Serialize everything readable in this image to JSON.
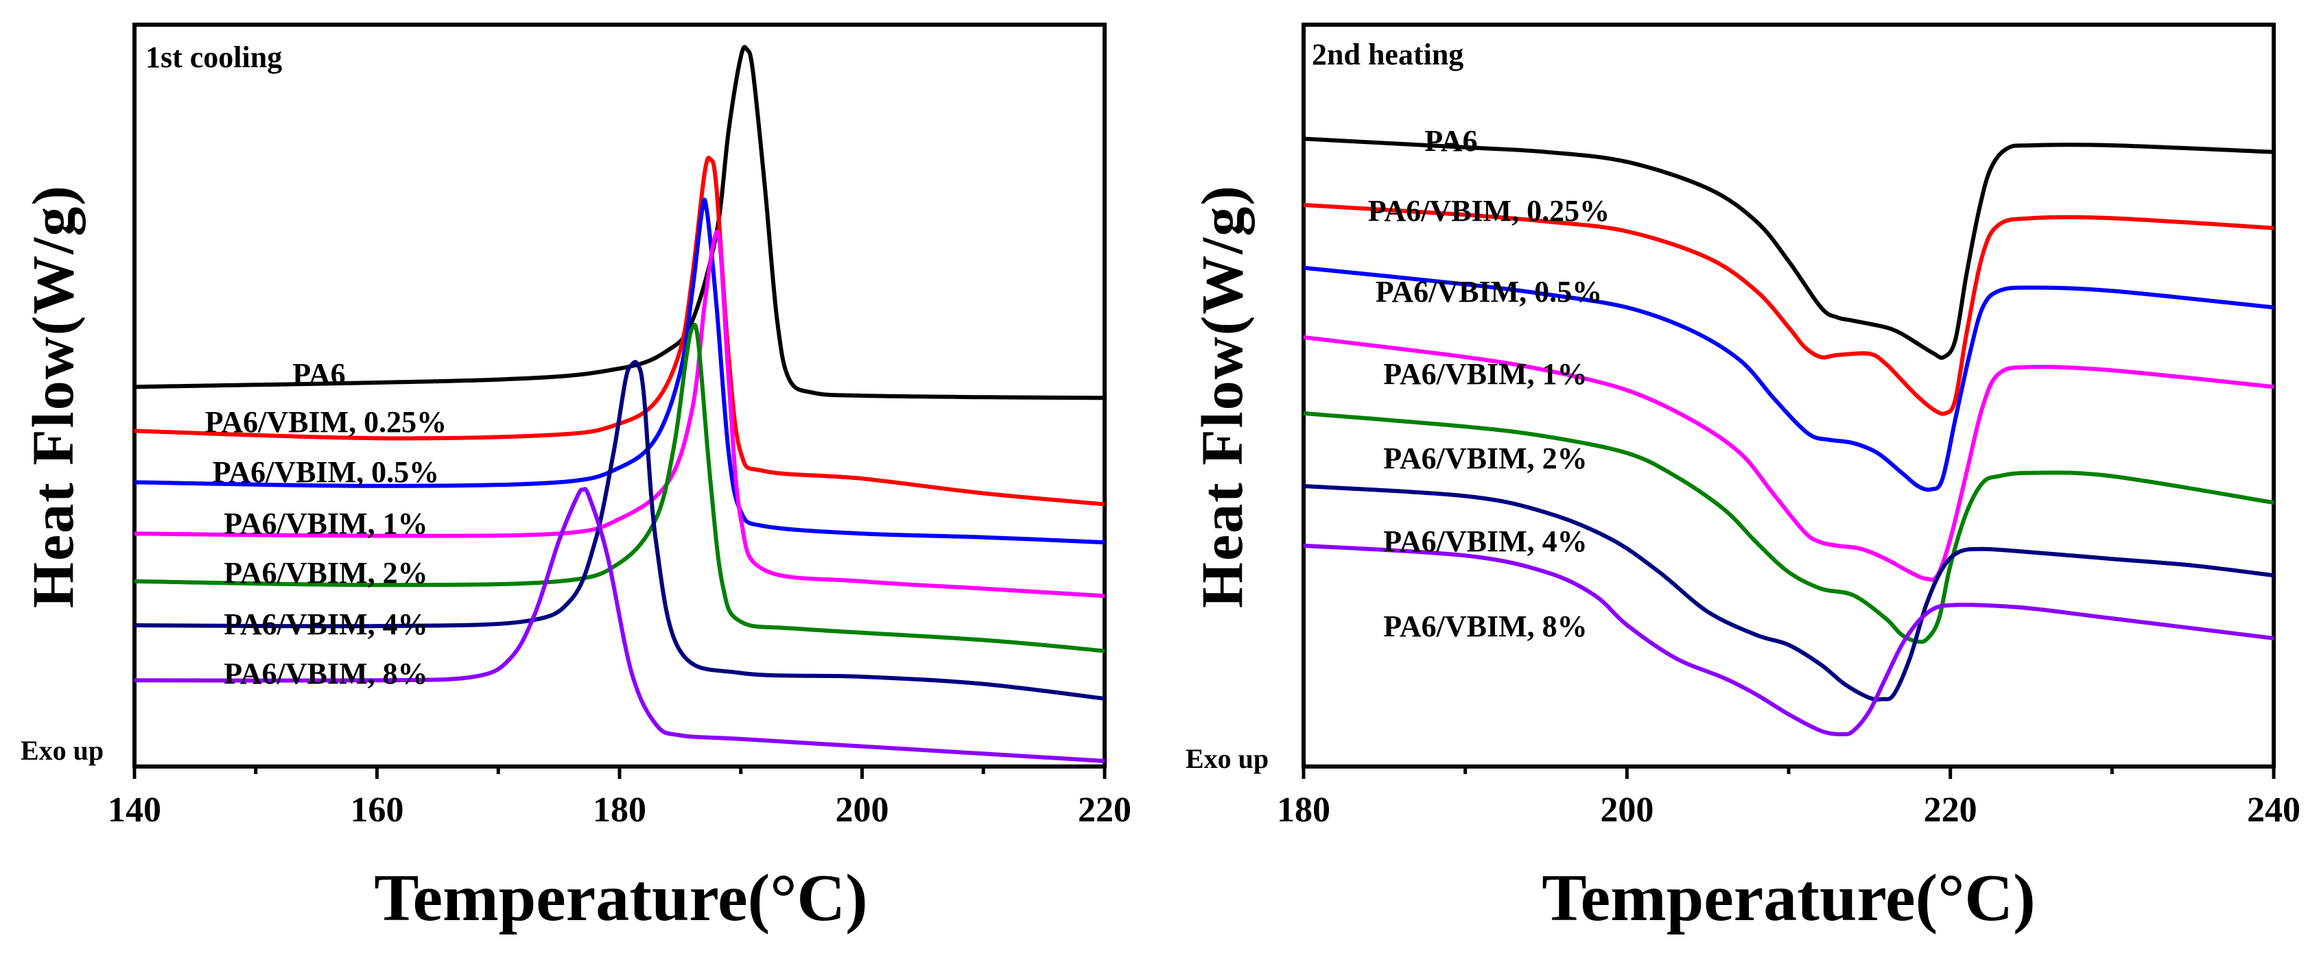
{
  "chart_data": [
    {
      "type": "line",
      "title": "1st cooling",
      "xlabel": "Temperature(°C)",
      "ylabel": "Heat Flow(W/g)",
      "xlim": [
        140,
        220
      ],
      "ylim": [
        0,
        100
      ],
      "xticks": [
        140,
        160,
        180,
        200,
        220
      ],
      "annotation": "Exo up",
      "series": [
        {
          "name": "PA6",
          "color": "#000000",
          "x": [
            140,
            170,
            180,
            184,
            186,
            188,
            189,
            190,
            190.5,
            191,
            192,
            193,
            194,
            196,
            200,
            210,
            220
          ],
          "y": [
            51,
            52,
            53.5,
            56,
            60,
            72,
            86,
            96,
            97,
            94,
            78,
            60,
            52,
            50.2,
            49.8,
            49.6,
            49.5
          ]
        },
        {
          "name": "PA6/VBIM, 0.25%",
          "color": "#ff0000",
          "x": [
            140,
            160,
            175,
            180,
            183,
            185,
            186,
            187,
            187.5,
            188,
            189,
            190,
            192,
            200,
            210,
            220
          ],
          "y": [
            45,
            44,
            44.5,
            46,
            49,
            56,
            66,
            80,
            82,
            78,
            55,
            42,
            39.5,
            38.5,
            36.5,
            35
          ]
        },
        {
          "name": "PA6/VBIM, 0.5%",
          "color": "#0000ff",
          "x": [
            140,
            160,
            175,
            180,
            183,
            185,
            186,
            186.8,
            187.2,
            188,
            189,
            190,
            192,
            200,
            210,
            220
          ],
          "y": [
            38,
            37.5,
            38,
            40,
            44,
            53,
            64,
            75,
            75,
            62,
            42,
            34,
            32,
            31,
            30.5,
            29.8
          ]
        },
        {
          "name": "PA6/VBIM, 1%",
          "color": "#ff00ff",
          "x": [
            140,
            160,
            175,
            180,
            184,
            186,
            187,
            187.8,
            188.3,
            189,
            190,
            192,
            200,
            210,
            220
          ],
          "y": [
            31,
            30.7,
            31,
            33,
            38,
            48,
            62,
            71,
            70,
            52,
            33,
            26,
            24.5,
            23.5,
            22.5
          ]
        },
        {
          "name": "PA6/VBIM, 2%",
          "color": "#008000",
          "x": [
            140,
            160,
            175,
            180,
            183,
            184.5,
            185.5,
            186,
            186.5,
            187.5,
            188.5,
            190,
            195,
            210,
            220
          ],
          "y": [
            24.5,
            24,
            24.5,
            27,
            33,
            43,
            55,
            59,
            57,
            38,
            24,
            19,
            18,
            16.5,
            15
          ]
        },
        {
          "name": "PA6/VBIM, 4%",
          "color": "#000080",
          "x": [
            140,
            160,
            172,
            176,
            178,
            179.5,
            180.5,
            181,
            181.5,
            182,
            183,
            185,
            190,
            200,
            210,
            220
          ],
          "y": [
            18.5,
            18.4,
            19,
            22,
            30,
            42,
            52,
            54,
            54,
            50,
            30,
            15,
            12,
            11.5,
            10.5,
            8.5
          ]
        },
        {
          "name": "PA6/VBIM, 8%",
          "color": "#8b00ff",
          "x": [
            140,
            160,
            168,
            171,
            173,
            175,
            176.5,
            177,
            177.5,
            179,
            181,
            183,
            185,
            190,
            200,
            210,
            220
          ],
          "y": [
            11,
            11,
            11.5,
            14,
            20,
            30,
            36,
            37,
            36,
            28,
            12,
            5,
            3.5,
            3,
            2,
            1,
            0
          ]
        }
      ],
      "labels": [
        "PA6",
        "PA6/VBIM, 0.25%",
        "PA6/VBIM, 0.5%",
        "PA6/VBIM, 1%",
        "PA6/VBIM, 2%",
        "PA6/VBIM, 4%",
        "PA6/VBIM, 8%"
      ]
    },
    {
      "type": "line",
      "title": "2nd heating",
      "xlabel": "Temperature(°C)",
      "ylabel": "Heat Flow(W/g)",
      "xlim": [
        180,
        240
      ],
      "ylim": [
        0,
        100
      ],
      "xticks": [
        180,
        200,
        220,
        240
      ],
      "annotation": "Exo up",
      "series": [
        {
          "name": "PA6",
          "color": "#000000",
          "x": [
            180,
            190,
            195,
            200,
            205,
            208,
            210,
            212,
            213,
            214,
            216,
            217,
            218,
            219,
            219.6,
            220.3,
            221,
            221.8,
            222.5,
            223.5,
            225,
            230,
            240
          ],
          "y": [
            92.5,
            91.2,
            90.5,
            89,
            85,
            80,
            74,
            67,
            65.5,
            65,
            64,
            63,
            61.5,
            60,
            59.5,
            62,
            72,
            82,
            88,
            91,
            91.5,
            91.5,
            90.5
          ]
        },
        {
          "name": "PA6/VBIM, 0.25%",
          "color": "#ff0000",
          "x": [
            180,
            190,
            195,
            200,
            205,
            208,
            210,
            211,
            212,
            213,
            215,
            216,
            217,
            218,
            219,
            219.7,
            220.3,
            221,
            222,
            223,
            225,
            230,
            240
          ],
          "y": [
            82.5,
            81,
            80,
            78.5,
            74.5,
            69.5,
            64,
            61,
            59.5,
            59.8,
            60,
            58.5,
            56,
            53.5,
            51.5,
            51,
            53,
            63,
            75,
            79.5,
            80.5,
            80.5,
            79
          ]
        },
        {
          "name": "PA6/VBIM, 0.5%",
          "color": "#0000ff",
          "x": [
            180,
            190,
            195,
            200,
            204,
            207,
            209,
            210.5,
            211.5,
            212.5,
            214,
            215.5,
            217,
            218,
            218.8,
            219.5,
            220.3,
            221.2,
            222,
            223,
            225,
            230,
            240
          ],
          "y": [
            73,
            70.5,
            69,
            67,
            63.5,
            59,
            53.5,
            49.5,
            47.5,
            47,
            46.5,
            45,
            42,
            40,
            39.5,
            41,
            50,
            60,
            67,
            69.5,
            70,
            69.5,
            67
          ]
        },
        {
          "name": "PA6/VBIM, 1%",
          "color": "#ff00ff",
          "x": [
            180,
            190,
            195,
            200,
            204,
            207,
            209,
            211,
            212,
            213,
            214.5,
            216,
            217.5,
            218.5,
            219.2,
            220,
            221,
            222,
            223,
            225,
            230,
            240
          ],
          "y": [
            62.5,
            59.5,
            57.5,
            54.5,
            50,
            45,
            39,
            33,
            31.5,
            31,
            30.5,
            29,
            27,
            26,
            26.5,
            32,
            42,
            52,
            57,
            58,
            57.5,
            55
          ]
        },
        {
          "name": "PA6/VBIM, 2%",
          "color": "#008000",
          "x": [
            180,
            190,
            195,
            200,
            203,
            206,
            208,
            210,
            212,
            214,
            216,
            217,
            218,
            218.6,
            219.3,
            220,
            221,
            222,
            223,
            225,
            230,
            240
          ],
          "y": [
            51,
            49,
            47.5,
            45,
            41.5,
            36.5,
            31.5,
            27,
            24.5,
            23.5,
            20,
            17.5,
            16.5,
            17,
            20,
            28,
            36,
            40.5,
            41.5,
            42,
            41.5,
            37.5
          ]
        },
        {
          "name": "PA6/VBIM, 4%",
          "color": "#000080",
          "x": [
            180,
            190,
            195,
            199,
            202,
            205,
            208,
            210,
            212,
            213.5,
            215,
            215.8,
            216.5,
            217.5,
            218.5,
            219.5,
            220.5,
            222,
            225,
            230,
            235,
            240
          ],
          "y": [
            40,
            38.5,
            36,
            32,
            27,
            21,
            17.5,
            16,
            13,
            10,
            8,
            7.8,
            8.5,
            14,
            22,
            27.5,
            30,
            30.5,
            30,
            29,
            28,
            26.5
          ]
        },
        {
          "name": "PA6/VBIM, 8%",
          "color": "#8b00ff",
          "x": [
            180,
            190,
            195,
            198,
            200,
            203,
            206,
            208,
            210,
            212,
            213.3,
            214,
            215,
            216,
            217,
            218,
            219,
            220,
            222,
            225,
            230,
            240
          ],
          "y": [
            31,
            29.5,
            27,
            23.5,
            19,
            14,
            11,
            8.5,
            5.5,
            3,
            2.5,
            3,
            6,
            11,
            16,
            19.5,
            21.5,
            22,
            22,
            21.5,
            20,
            17
          ]
        }
      ],
      "labels": [
        "PA6",
        "PA6/VBIM, 0.25%",
        "PA6/VBIM, 0.5%",
        "PA6/VBIM, 1%",
        "PA6/VBIM, 2%",
        "PA6/VBIM, 4%",
        "PA6/VBIM, 8%"
      ]
    }
  ]
}
